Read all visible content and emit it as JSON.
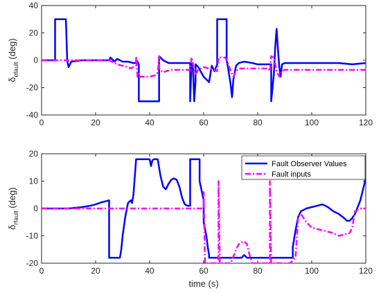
{
  "chart_data": [
    {
      "type": "line",
      "xlabel": "",
      "ylabel_main": "δ",
      "ylabel_sub": "efault",
      "ylabel_unit": " (deg)",
      "xlim": [
        0,
        120
      ],
      "ylim": [
        -40,
        40
      ],
      "xticks": [
        0,
        20,
        40,
        60,
        80,
        100,
        120
      ],
      "yticks": [
        -40,
        -20,
        0,
        20,
        40
      ],
      "grid": false,
      "series": [
        {
          "color": "#0000FF",
          "style": "solid",
          "x": [
            0,
            5,
            5,
            9,
            9.5,
            10,
            11,
            15,
            20,
            25,
            25.5,
            26,
            27,
            28,
            30,
            32,
            34,
            35,
            35,
            35.5,
            36,
            36,
            43.5,
            43.5,
            44,
            45,
            47,
            50,
            52,
            55,
            55,
            55.5,
            56,
            56.5,
            57,
            57,
            58,
            60,
            62,
            62.5,
            63,
            64,
            65,
            65,
            68.5,
            68.5,
            69,
            70,
            70.5,
            71,
            72,
            73,
            75,
            78,
            80,
            83,
            85,
            85,
            85.5,
            86,
            86.5,
            87,
            87.5,
            88,
            88.5,
            89,
            90,
            92,
            95,
            100,
            105,
            110,
            115,
            120
          ],
          "y": [
            0,
            0,
            30,
            30,
            0,
            -5,
            -1,
            0,
            0,
            0,
            2,
            1,
            -1,
            1,
            -1,
            -1,
            -2,
            -2,
            0,
            -1,
            -3,
            -30,
            -30,
            3,
            2,
            0,
            -2,
            -2,
            -2,
            -2,
            -30,
            -3,
            -2,
            -30,
            -15,
            -3,
            -5,
            -12,
            -16,
            -10,
            -4,
            -8,
            -3,
            30,
            30,
            0,
            -5,
            -18,
            -27,
            -14,
            -4,
            -2,
            -1,
            -2,
            -3,
            -3,
            -3,
            -30,
            -20,
            -10,
            10,
            23,
            8,
            -5,
            -12,
            -3,
            -2,
            -2,
            -2,
            -2,
            -2,
            -2,
            -3,
            -2
          ]
        },
        {
          "color": "#FF00FF",
          "style": "dashdot",
          "x": [
            0,
            25,
            27,
            28,
            30,
            32,
            33,
            34,
            35,
            35,
            35.5,
            36,
            36,
            38,
            40,
            42,
            43,
            43.5,
            43.5,
            44,
            44.5,
            45,
            46,
            48,
            50,
            52,
            54,
            55,
            55.5,
            56,
            56.5,
            57,
            58,
            59,
            60,
            62,
            64,
            65,
            65.5,
            66,
            67,
            68,
            69,
            70,
            71,
            72,
            73,
            75,
            78,
            80,
            84,
            84.5,
            85,
            86,
            87,
            88,
            88.5,
            89,
            90,
            92,
            95,
            100,
            105,
            110,
            115,
            120
          ],
          "y": [
            0,
            0,
            -2,
            -3,
            -4,
            -5,
            -6,
            -5,
            -4,
            3,
            -12,
            -10,
            -12,
            -12,
            -12,
            -11,
            -9,
            3,
            -6,
            -7,
            -8,
            -9,
            -8,
            -7,
            -7,
            -7,
            -7,
            -7,
            2,
            -2,
            -8,
            -10,
            -7,
            -6,
            -5,
            -6,
            -7,
            -8,
            2,
            2,
            2,
            2,
            -2,
            -8,
            -12,
            -8,
            -6,
            -6,
            -6,
            -6,
            -6,
            -8,
            3,
            2,
            -8,
            -12,
            -10,
            -8,
            -7,
            -7,
            -7,
            -7,
            -7,
            -7,
            -7,
            -7
          ]
        }
      ]
    },
    {
      "type": "line",
      "xlabel": "time (s)",
      "ylabel_main": "δ",
      "ylabel_sub": "rfault",
      "ylabel_unit": " (deg)",
      "xlim": [
        0,
        120
      ],
      "ylim": [
        -20,
        20
      ],
      "xticks": [
        0,
        20,
        40,
        60,
        80,
        100,
        120
      ],
      "yticks": [
        -20,
        -10,
        0,
        10,
        20
      ],
      "grid": false,
      "legend": {
        "placement": "top-right",
        "entries": [
          "Fault Observer Values",
          "Fault inputs"
        ]
      },
      "series": [
        {
          "name": "Fault Observer Values",
          "color": "#0000FF",
          "style": "solid",
          "x": [
            0,
            10,
            15,
            18,
            20,
            22,
            24,
            25,
            25,
            26,
            27,
            28,
            29,
            29.5,
            30,
            31,
            32,
            33,
            33.5,
            34,
            35,
            35,
            40,
            40.5,
            41,
            41.5,
            43,
            44,
            45,
            46,
            47,
            48,
            49,
            50,
            51,
            52,
            53,
            54,
            55,
            55,
            58.5,
            58.5,
            60,
            60,
            61,
            61.5,
            62,
            62,
            70,
            74,
            75,
            76,
            78,
            80,
            85,
            90,
            93,
            93,
            94,
            95,
            96,
            98,
            100,
            102,
            104,
            106,
            108,
            110,
            112,
            113,
            114,
            115,
            116,
            118,
            120
          ],
          "y": [
            0,
            0,
            0.5,
            1,
            1.5,
            2.2,
            2.7,
            3,
            -18,
            -18,
            -18,
            -18,
            -18,
            -15,
            -10,
            -3,
            2,
            3,
            2,
            5,
            18,
            18,
            18,
            15.5,
            17.5,
            18,
            18,
            12,
            8,
            7,
            9,
            10.5,
            11,
            10.5,
            8,
            4,
            1.5,
            1,
            1,
            18,
            18,
            10,
            3,
            -5,
            -10,
            -14,
            -17,
            -18,
            -18,
            -18,
            -17,
            -18,
            -18,
            -18,
            -18,
            -18,
            -18,
            -14,
            -8,
            -3,
            -1,
            0,
            0.5,
            1,
            1.5,
            0.5,
            -1,
            -2,
            -3.5,
            -4.5,
            -4.5,
            -3.5,
            -2,
            3,
            11
          ]
        },
        {
          "name": "Fault inputs",
          "color": "#FF00FF",
          "style": "dashdot",
          "x": [
            0,
            60,
            60,
            60.5,
            60.5,
            65.5,
            65.5,
            66,
            66,
            70,
            72,
            73,
            75,
            76,
            77,
            78,
            79,
            80,
            84,
            84.5,
            84.5,
            85,
            85,
            90,
            92,
            94,
            95,
            96,
            98,
            100,
            104,
            108,
            110,
            112,
            114,
            115,
            116,
            118,
            120
          ],
          "y": [
            0,
            0,
            6,
            -20,
            -20,
            -20,
            10,
            -20,
            -20,
            -20,
            -15,
            -13,
            -12,
            -13,
            -17,
            -20,
            -20,
            -20,
            -20,
            -20,
            10,
            -20,
            -20,
            -20,
            -20,
            -18,
            -3,
            -2,
            -5,
            -7,
            -8,
            -9,
            -10,
            -9.5,
            -9,
            -7,
            -1,
            0,
            0
          ]
        }
      ]
    }
  ]
}
